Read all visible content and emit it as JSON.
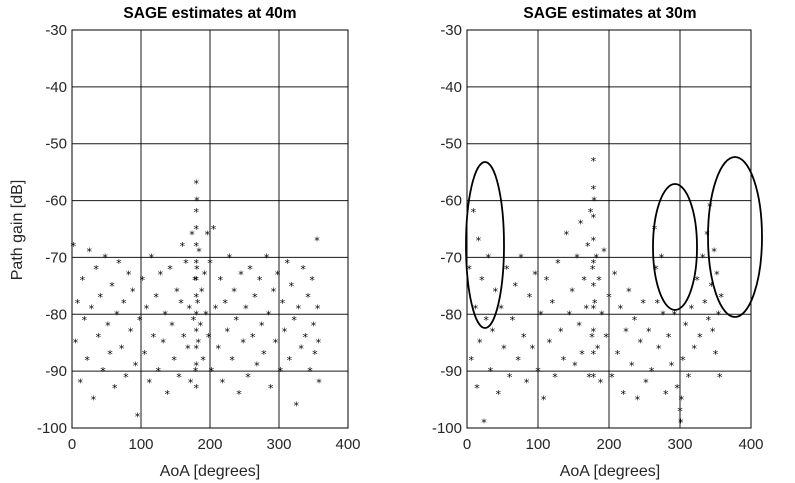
{
  "chart_data": [
    {
      "type": "scatter",
      "title": "SAGE estimates at 40m",
      "xlabel": "AoA [degrees]",
      "ylabel": "Path gain [dB]",
      "xlim": [
        0,
        400
      ],
      "ylim": [
        -100,
        -30
      ],
      "xticks": [
        0,
        100,
        200,
        300,
        400
      ],
      "yticks": [
        -30,
        -40,
        -50,
        -60,
        -70,
        -80,
        -90,
        -100
      ],
      "grid": true,
      "marker": "*",
      "color": "#000000",
      "points": [
        [
          2,
          -68
        ],
        [
          5,
          -85
        ],
        [
          8,
          -78
        ],
        [
          12,
          -92
        ],
        [
          15,
          -74
        ],
        [
          18,
          -81
        ],
        [
          22,
          -88
        ],
        [
          25,
          -69
        ],
        [
          28,
          -79
        ],
        [
          31,
          -95
        ],
        [
          35,
          -72
        ],
        [
          38,
          -84
        ],
        [
          41,
          -77
        ],
        [
          45,
          -90
        ],
        [
          48,
          -70
        ],
        [
          52,
          -82
        ],
        [
          55,
          -87
        ],
        [
          58,
          -75
        ],
        [
          62,
          -93
        ],
        [
          65,
          -80
        ],
        [
          68,
          -71
        ],
        [
          72,
          -86
        ],
        [
          75,
          -78
        ],
        [
          78,
          -91
        ],
        [
          82,
          -73
        ],
        [
          85,
          -83
        ],
        [
          88,
          -76
        ],
        [
          92,
          -89
        ],
        [
          95,
          -98
        ],
        [
          98,
          -81
        ],
        [
          102,
          -74
        ],
        [
          105,
          -87
        ],
        [
          108,
          -79
        ],
        [
          112,
          -92
        ],
        [
          115,
          -70
        ],
        [
          118,
          -84
        ],
        [
          122,
          -77
        ],
        [
          125,
          -90
        ],
        [
          128,
          -73
        ],
        [
          132,
          -85
        ],
        [
          135,
          -80
        ],
        [
          138,
          -94
        ],
        [
          142,
          -72
        ],
        [
          145,
          -82
        ],
        [
          148,
          -88
        ],
        [
          152,
          -76
        ],
        [
          155,
          -91
        ],
        [
          158,
          -78
        ],
        [
          160,
          -68
        ],
        [
          162,
          -84
        ],
        [
          165,
          -71
        ],
        [
          168,
          -86
        ],
        [
          170,
          -79
        ],
        [
          172,
          -92
        ],
        [
          174,
          -66
        ],
        [
          176,
          -81
        ],
        [
          178,
          -74
        ],
        [
          179,
          -90
        ],
        [
          180,
          -57
        ],
        [
          180,
          -62
        ],
        [
          180,
          -65
        ],
        [
          180,
          -68
        ],
        [
          180,
          -71
        ],
        [
          180,
          -74
        ],
        [
          180,
          -77
        ],
        [
          180,
          -80
        ],
        [
          180,
          -83
        ],
        [
          180,
          -86
        ],
        [
          180,
          -89
        ],
        [
          180,
          -93
        ],
        [
          181,
          -60
        ],
        [
          181,
          -72
        ],
        [
          182,
          -78
        ],
        [
          183,
          -85
        ],
        [
          184,
          -69
        ],
        [
          186,
          -82
        ],
        [
          188,
          -76
        ],
        [
          190,
          -88
        ],
        [
          192,
          -73
        ],
        [
          194,
          -80
        ],
        [
          196,
          -66
        ],
        [
          198,
          -84
        ],
        [
          200,
          -71
        ],
        [
          202,
          -90
        ],
        [
          205,
          -65
        ],
        [
          208,
          -79
        ],
        [
          212,
          -86
        ],
        [
          215,
          -74
        ],
        [
          218,
          -92
        ],
        [
          222,
          -78
        ],
        [
          225,
          -83
        ],
        [
          228,
          -70
        ],
        [
          232,
          -88
        ],
        [
          235,
          -76
        ],
        [
          238,
          -81
        ],
        [
          242,
          -94
        ],
        [
          245,
          -73
        ],
        [
          248,
          -85
        ],
        [
          252,
          -79
        ],
        [
          255,
          -91
        ],
        [
          258,
          -72
        ],
        [
          262,
          -84
        ],
        [
          265,
          -77
        ],
        [
          268,
          -89
        ],
        [
          272,
          -74
        ],
        [
          275,
          -82
        ],
        [
          278,
          -87
        ],
        [
          282,
          -70
        ],
        [
          285,
          -80
        ],
        [
          288,
          -93
        ],
        [
          292,
          -76
        ],
        [
          295,
          -85
        ],
        [
          298,
          -73
        ],
        [
          302,
          -90
        ],
        [
          305,
          -78
        ],
        [
          308,
          -83
        ],
        [
          312,
          -71
        ],
        [
          315,
          -88
        ],
        [
          318,
          -75
        ],
        [
          322,
          -81
        ],
        [
          325,
          -96
        ],
        [
          328,
          -79
        ],
        [
          332,
          -86
        ],
        [
          335,
          -72
        ],
        [
          338,
          -84
        ],
        [
          342,
          -77
        ],
        [
          345,
          -90
        ],
        [
          348,
          -74
        ],
        [
          350,
          -82
        ],
        [
          352,
          -87
        ],
        [
          355,
          -67
        ],
        [
          356,
          -79
        ],
        [
          357,
          -85
        ],
        [
          358,
          -92
        ]
      ]
    },
    {
      "type": "scatter",
      "title": "SAGE estimates at 30m",
      "xlabel": "AoA [degrees]",
      "ylabel": "",
      "xlim": [
        0,
        400
      ],
      "ylim": [
        -100,
        -30
      ],
      "xticks": [
        0,
        100,
        200,
        300,
        400
      ],
      "yticks": [
        -30,
        -40,
        -50,
        -60,
        -70,
        -80,
        -90,
        -100
      ],
      "grid": true,
      "marker": "*",
      "color": "#000000",
      "points": [
        [
          3,
          -72
        ],
        [
          6,
          -88
        ],
        [
          9,
          -62
        ],
        [
          12,
          -79
        ],
        [
          14,
          -93
        ],
        [
          16,
          -67
        ],
        [
          18,
          -85
        ],
        [
          21,
          -74
        ],
        [
          24,
          -99
        ],
        [
          27,
          -81
        ],
        [
          30,
          -70
        ],
        [
          33,
          -90
        ],
        [
          36,
          -83
        ],
        [
          40,
          -76
        ],
        [
          44,
          -94
        ],
        [
          48,
          -79
        ],
        [
          52,
          -86
        ],
        [
          56,
          -72
        ],
        [
          60,
          -91
        ],
        [
          64,
          -81
        ],
        [
          68,
          -75
        ],
        [
          72,
          -88
        ],
        [
          76,
          -70
        ],
        [
          80,
          -84
        ],
        [
          84,
          -92
        ],
        [
          88,
          -77
        ],
        [
          92,
          -86
        ],
        [
          96,
          -73
        ],
        [
          100,
          -90
        ],
        [
          104,
          -80
        ],
        [
          108,
          -95
        ],
        [
          112,
          -74
        ],
        [
          116,
          -85
        ],
        [
          120,
          -78
        ],
        [
          124,
          -91
        ],
        [
          128,
          -71
        ],
        [
          132,
          -83
        ],
        [
          136,
          -88
        ],
        [
          140,
          -66
        ],
        [
          144,
          -80
        ],
        [
          148,
          -76
        ],
        [
          152,
          -89
        ],
        [
          155,
          -70
        ],
        [
          158,
          -82
        ],
        [
          160,
          -64
        ],
        [
          162,
          -87
        ],
        [
          165,
          -74
        ],
        [
          168,
          -79
        ],
        [
          170,
          -68
        ],
        [
          172,
          -91
        ],
        [
          174,
          -62
        ],
        [
          176,
          -84
        ],
        [
          177,
          -72
        ],
        [
          178,
          -53
        ],
        [
          178,
          -58
        ],
        [
          178,
          -63
        ],
        [
          178,
          -67
        ],
        [
          178,
          -71
        ],
        [
          178,
          -75
        ],
        [
          178,
          -79
        ],
        [
          178,
          -83
        ],
        [
          178,
          -87
        ],
        [
          178,
          -91
        ],
        [
          179,
          -60
        ],
        [
          180,
          -78
        ],
        [
          182,
          -70
        ],
        [
          184,
          -86
        ],
        [
          186,
          -74
        ],
        [
          188,
          -92
        ],
        [
          190,
          -80
        ],
        [
          193,
          -69
        ],
        [
          196,
          -84
        ],
        [
          200,
          -77
        ],
        [
          204,
          -91
        ],
        [
          208,
          -73
        ],
        [
          212,
          -87
        ],
        [
          216,
          -79
        ],
        [
          220,
          -94
        ],
        [
          224,
          -83
        ],
        [
          228,
          -76
        ],
        [
          232,
          -89
        ],
        [
          236,
          -81
        ],
        [
          240,
          -95
        ],
        [
          244,
          -85
        ],
        [
          248,
          -78
        ],
        [
          252,
          -92
        ],
        [
          256,
          -83
        ],
        [
          260,
          -90
        ],
        [
          264,
          -65
        ],
        [
          266,
          -72
        ],
        [
          268,
          -78
        ],
        [
          270,
          -86
        ],
        [
          274,
          -70
        ],
        [
          276,
          -80
        ],
        [
          280,
          -94
        ],
        [
          284,
          -84
        ],
        [
          288,
          -89
        ],
        [
          292,
          -80
        ],
        [
          296,
          -93
        ],
        [
          300,
          -97
        ],
        [
          301,
          -99
        ],
        [
          302,
          -95
        ],
        [
          304,
          -88
        ],
        [
          308,
          -82
        ],
        [
          312,
          -91
        ],
        [
          316,
          -79
        ],
        [
          320,
          -86
        ],
        [
          324,
          -74
        ],
        [
          328,
          -84
        ],
        [
          332,
          -70
        ],
        [
          335,
          -78
        ],
        [
          338,
          -66
        ],
        [
          340,
          -81
        ],
        [
          342,
          -61
        ],
        [
          344,
          -75
        ],
        [
          346,
          -83
        ],
        [
          348,
          -69
        ],
        [
          350,
          -87
        ],
        [
          352,
          -73
        ],
        [
          354,
          -80
        ],
        [
          356,
          -91
        ],
        [
          358,
          -77
        ]
      ]
    }
  ]
}
